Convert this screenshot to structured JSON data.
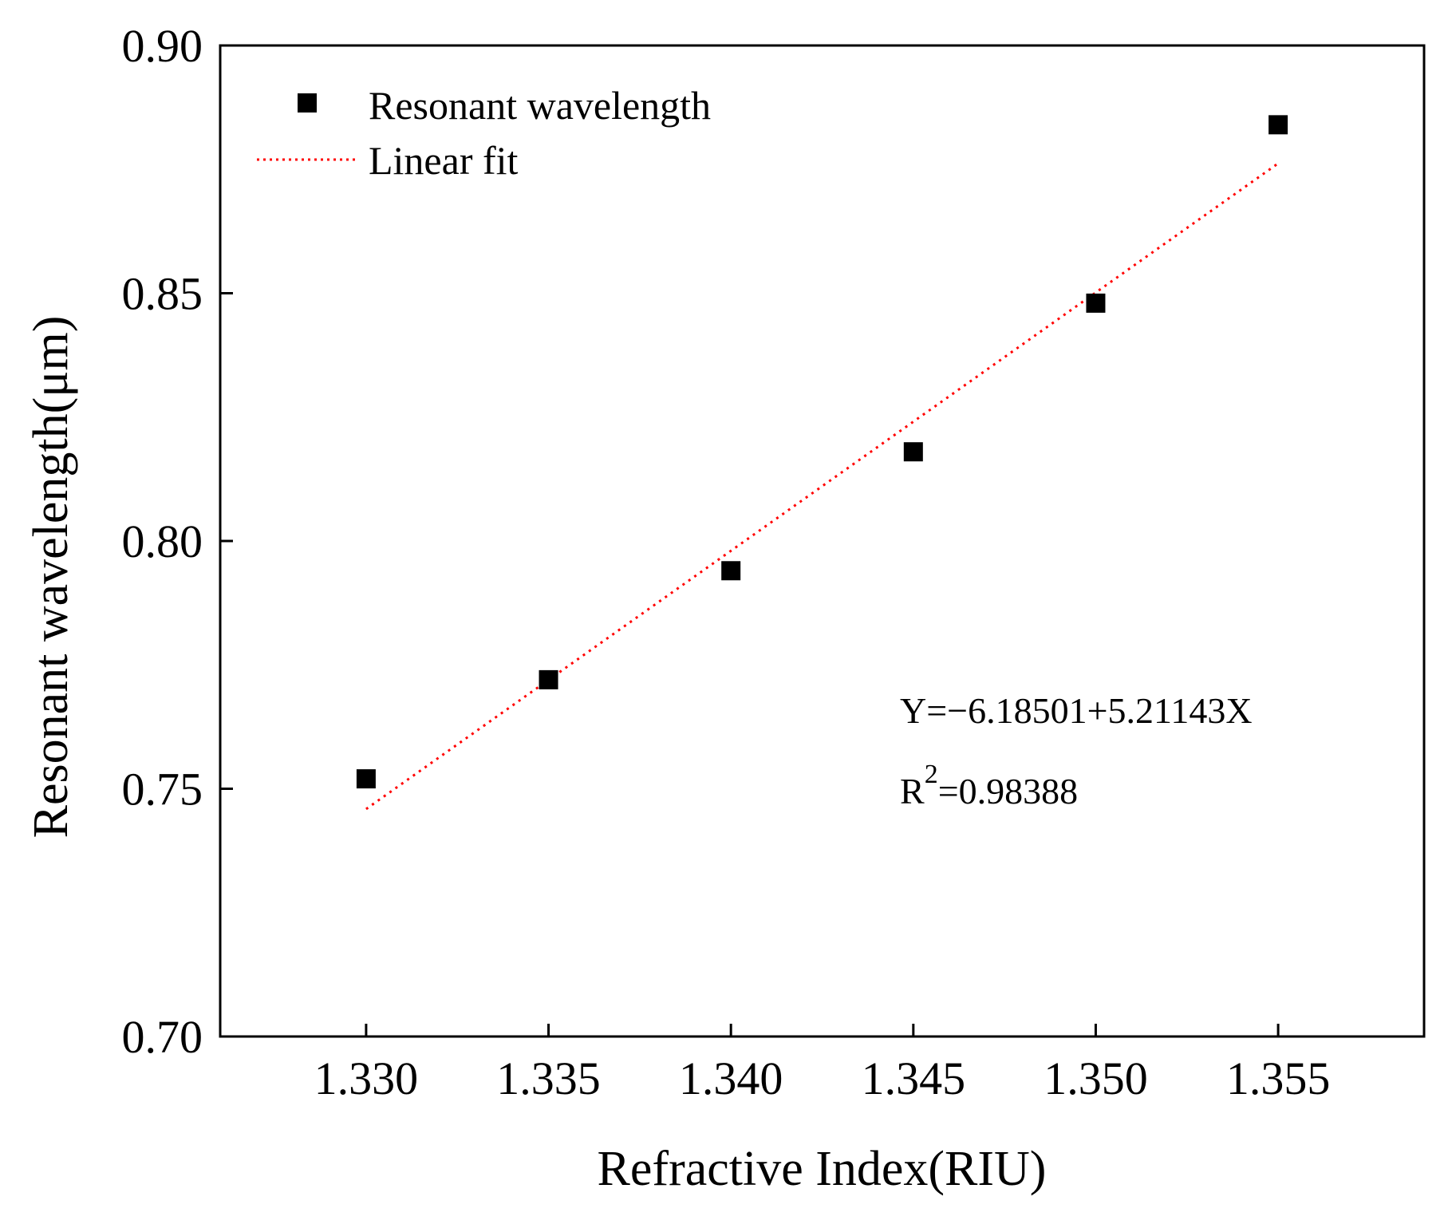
{
  "chart_data": {
    "type": "scatter",
    "xlabel": "Refractive Index(RIU)",
    "ylabel": "Resonant wavelength(μm)",
    "xlim": [
      1.326,
      1.359
    ],
    "ylim": [
      0.7,
      0.9
    ],
    "xticks": [
      1.33,
      1.335,
      1.34,
      1.345,
      1.35,
      1.355
    ],
    "xtick_labels": [
      "1.330",
      "1.335",
      "1.340",
      "1.345",
      "1.350",
      "1.355"
    ],
    "yticks": [
      0.7,
      0.75,
      0.8,
      0.85,
      0.9
    ],
    "ytick_labels": [
      "0.70",
      "0.75",
      "0.80",
      "0.85",
      "0.90"
    ],
    "grid": false,
    "legend_position": "top-left",
    "series": [
      {
        "name": "Resonant wavelength",
        "marker": "square",
        "color": "#000000",
        "x": [
          1.33,
          1.335,
          1.34,
          1.345,
          1.35,
          1.355
        ],
        "y": [
          0.752,
          0.772,
          0.794,
          0.818,
          0.848,
          0.884
        ]
      },
      {
        "name": "Linear fit",
        "style": "dotted",
        "color": "#ff0000",
        "x": [
          1.33,
          1.355
        ],
        "y": [
          0.7459,
          0.8762
        ]
      }
    ],
    "annotations": {
      "equation": "Y=−6.18501+5.21143X",
      "r2_prefix": "R",
      "r2_superscript": "2",
      "r2_value": "=0.98388"
    }
  }
}
